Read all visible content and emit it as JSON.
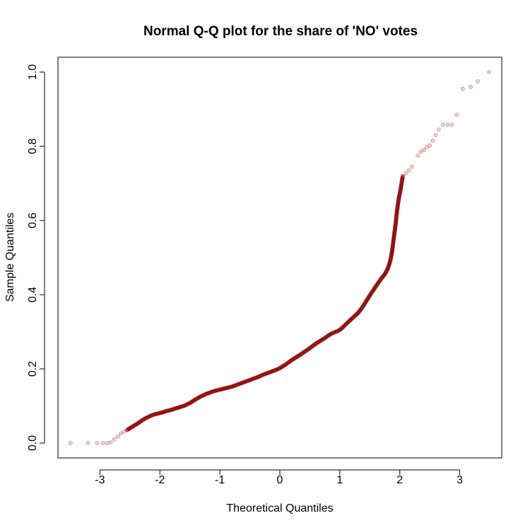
{
  "chart_data": {
    "type": "scatter",
    "title": "Normal Q-Q plot for the share of 'NO' votes",
    "xlabel": "Theoretical Quantiles",
    "ylabel": "Sample Quantiles",
    "xlim": [
      -3.7,
      3.7
    ],
    "ylim": [
      -0.04,
      1.04
    ],
    "xticks": [
      -3,
      -2,
      -1,
      0,
      1,
      2,
      3
    ],
    "xtick_labels": [
      "-3",
      "-2",
      "-1",
      "0",
      "1",
      "2",
      "3"
    ],
    "yticks": [
      0.0,
      0.2,
      0.4,
      0.6,
      0.8,
      1.0
    ],
    "ytick_labels": [
      "0.0",
      "0.2",
      "0.4",
      "0.6",
      "0.8",
      "1.0"
    ],
    "grid": false,
    "legend": "none",
    "point_color": "#8b0000",
    "point_alpha": 0.18,
    "series": [
      {
        "values": [
          [
            -3.49,
            0.0
          ],
          [
            -3.2,
            0.0
          ],
          [
            -3.05,
            0.0
          ],
          [
            -2.95,
            0.0
          ],
          [
            -2.88,
            0.0
          ],
          [
            -2.82,
            0.002
          ],
          [
            -2.76,
            0.01
          ],
          [
            -2.7,
            0.018
          ],
          [
            -2.65,
            0.026
          ],
          [
            -2.6,
            0.031
          ],
          [
            -2.55,
            0.035
          ],
          [
            -2.5,
            0.04
          ],
          [
            -2.45,
            0.045
          ],
          [
            -2.4,
            0.05
          ],
          [
            -2.35,
            0.055
          ],
          [
            -2.3,
            0.061
          ],
          [
            -2.25,
            0.066
          ],
          [
            -2.2,
            0.07
          ],
          [
            -2.15,
            0.074
          ],
          [
            -2.1,
            0.077
          ],
          [
            -2.05,
            0.079
          ],
          [
            -2.0,
            0.081
          ],
          [
            -1.95,
            0.083
          ],
          [
            -1.9,
            0.086
          ],
          [
            -1.85,
            0.088
          ],
          [
            -1.8,
            0.09
          ],
          [
            -1.75,
            0.093
          ],
          [
            -1.7,
            0.095
          ],
          [
            -1.65,
            0.098
          ],
          [
            -1.6,
            0.1
          ],
          [
            -1.55,
            0.104
          ],
          [
            -1.5,
            0.108
          ],
          [
            -1.45,
            0.113
          ],
          [
            -1.4,
            0.118
          ],
          [
            -1.35,
            0.123
          ],
          [
            -1.3,
            0.127
          ],
          [
            -1.25,
            0.131
          ],
          [
            -1.2,
            0.134
          ],
          [
            -1.15,
            0.137
          ],
          [
            -1.1,
            0.14
          ],
          [
            -1.05,
            0.142
          ],
          [
            -1.0,
            0.144
          ],
          [
            -0.95,
            0.146
          ],
          [
            -0.9,
            0.148
          ],
          [
            -0.85,
            0.15
          ],
          [
            -0.8,
            0.152
          ],
          [
            -0.75,
            0.155
          ],
          [
            -0.7,
            0.158
          ],
          [
            -0.65,
            0.161
          ],
          [
            -0.6,
            0.164
          ],
          [
            -0.55,
            0.167
          ],
          [
            -0.5,
            0.17
          ],
          [
            -0.45,
            0.173
          ],
          [
            -0.4,
            0.176
          ],
          [
            -0.35,
            0.179
          ],
          [
            -0.3,
            0.183
          ],
          [
            -0.25,
            0.186
          ],
          [
            -0.2,
            0.189
          ],
          [
            -0.15,
            0.192
          ],
          [
            -0.1,
            0.195
          ],
          [
            -0.05,
            0.198
          ],
          [
            0.0,
            0.202
          ],
          [
            0.05,
            0.207
          ],
          [
            0.1,
            0.212
          ],
          [
            0.15,
            0.218
          ],
          [
            0.2,
            0.224
          ],
          [
            0.25,
            0.229
          ],
          [
            0.3,
            0.234
          ],
          [
            0.35,
            0.239
          ],
          [
            0.4,
            0.245
          ],
          [
            0.45,
            0.25
          ],
          [
            0.5,
            0.256
          ],
          [
            0.55,
            0.262
          ],
          [
            0.6,
            0.268
          ],
          [
            0.65,
            0.273
          ],
          [
            0.7,
            0.278
          ],
          [
            0.75,
            0.283
          ],
          [
            0.8,
            0.289
          ],
          [
            0.85,
            0.294
          ],
          [
            0.9,
            0.298
          ],
          [
            0.95,
            0.301
          ],
          [
            1.0,
            0.305
          ],
          [
            1.05,
            0.312
          ],
          [
            1.1,
            0.32
          ],
          [
            1.15,
            0.328
          ],
          [
            1.2,
            0.335
          ],
          [
            1.25,
            0.343
          ],
          [
            1.3,
            0.35
          ],
          [
            1.35,
            0.36
          ],
          [
            1.4,
            0.372
          ],
          [
            1.45,
            0.385
          ],
          [
            1.5,
            0.398
          ],
          [
            1.55,
            0.41
          ],
          [
            1.6,
            0.422
          ],
          [
            1.65,
            0.434
          ],
          [
            1.7,
            0.445
          ],
          [
            1.75,
            0.455
          ],
          [
            1.8,
            0.47
          ],
          [
            1.84,
            0.49
          ],
          [
            1.87,
            0.515
          ],
          [
            1.89,
            0.54
          ],
          [
            1.91,
            0.565
          ],
          [
            1.93,
            0.59
          ],
          [
            1.95,
            0.62
          ],
          [
            1.97,
            0.645
          ],
          [
            1.99,
            0.665
          ],
          [
            2.01,
            0.68
          ],
          [
            2.05,
            0.72
          ],
          [
            2.1,
            0.727
          ],
          [
            2.15,
            0.735
          ],
          [
            2.2,
            0.745
          ],
          [
            2.3,
            0.775
          ],
          [
            2.35,
            0.785
          ],
          [
            2.4,
            0.79
          ],
          [
            2.45,
            0.797
          ],
          [
            2.5,
            0.802
          ],
          [
            2.55,
            0.815
          ],
          [
            2.6,
            0.83
          ],
          [
            2.65,
            0.845
          ],
          [
            2.72,
            0.858
          ],
          [
            2.8,
            0.858
          ],
          [
            2.87,
            0.858
          ],
          [
            2.95,
            0.885
          ],
          [
            3.05,
            0.955
          ],
          [
            3.18,
            0.96
          ],
          [
            3.3,
            0.975
          ],
          [
            3.49,
            1.0
          ]
        ]
      }
    ]
  }
}
